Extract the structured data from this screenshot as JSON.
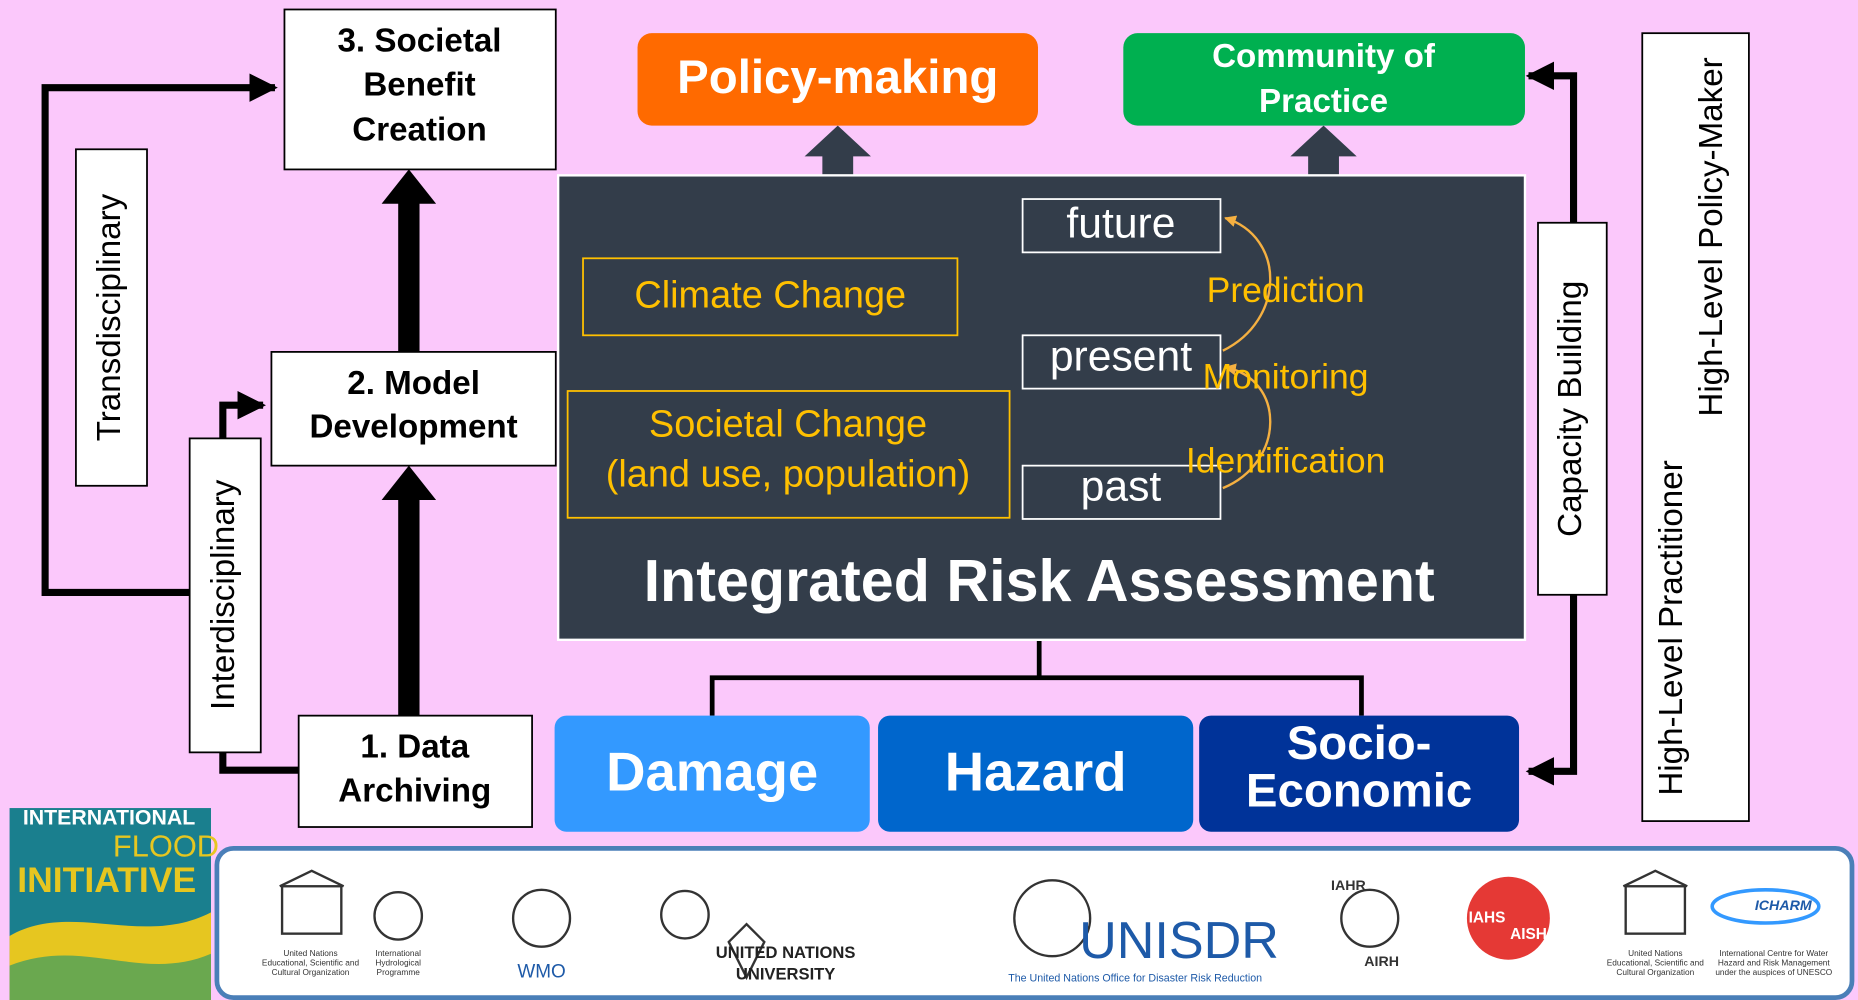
{
  "boxes": {
    "societal_benefit": [
      "3. Societal",
      "Benefit",
      "Creation"
    ],
    "model_development": [
      "2. Model",
      "Development"
    ],
    "data_archiving": [
      "1. Data",
      "Archiving"
    ]
  },
  "side_labels": {
    "transdisciplinary": "Transdisciplinary",
    "interdisciplinary": "Interdisciplinary",
    "capacity_building": "Capacity  Building",
    "policy_maker": "High-Level Policy-Maker",
    "practitioner": "High-Level Practitioner"
  },
  "outputs": {
    "policy_making": "Policy-making",
    "community": [
      "Community of",
      "Practice"
    ]
  },
  "panel": {
    "title": "Integrated Risk Assessment",
    "climate_change": "Climate Change",
    "societal_change": [
      "Societal Change",
      "(land use, population)"
    ],
    "timeline": [
      "future",
      "present",
      "past"
    ],
    "steps": [
      "Prediction",
      "Monitoring",
      "Identification"
    ]
  },
  "components": {
    "damage": "Damage",
    "hazard": "Hazard",
    "socio_economic": [
      "Socio-",
      "Economic"
    ]
  },
  "logos": {
    "ifi": [
      "INTERNATIONAL",
      "FLOOD",
      "INITIATIVE"
    ],
    "unesco": [
      "United Nations",
      "Educational, Scientific and",
      "Cultural Organization"
    ],
    "ihp": [
      "International",
      "Hydrological",
      "Programme"
    ],
    "wmo": "WMO",
    "unu": [
      "UNITED NATIONS",
      "UNIVERSITY"
    ],
    "unisdr": "UNISDR",
    "unisdr_sub": "The United Nations Office for Disaster Risk Reduction",
    "iahr": [
      "IAHR",
      "AIRH"
    ],
    "iahs": [
      "IAHS",
      "AISH"
    ],
    "icharm": "ICHARM",
    "icharm_sub": [
      "International Centre for Water",
      "Hazard and Risk Management",
      "under the auspices of UNESCO"
    ]
  }
}
